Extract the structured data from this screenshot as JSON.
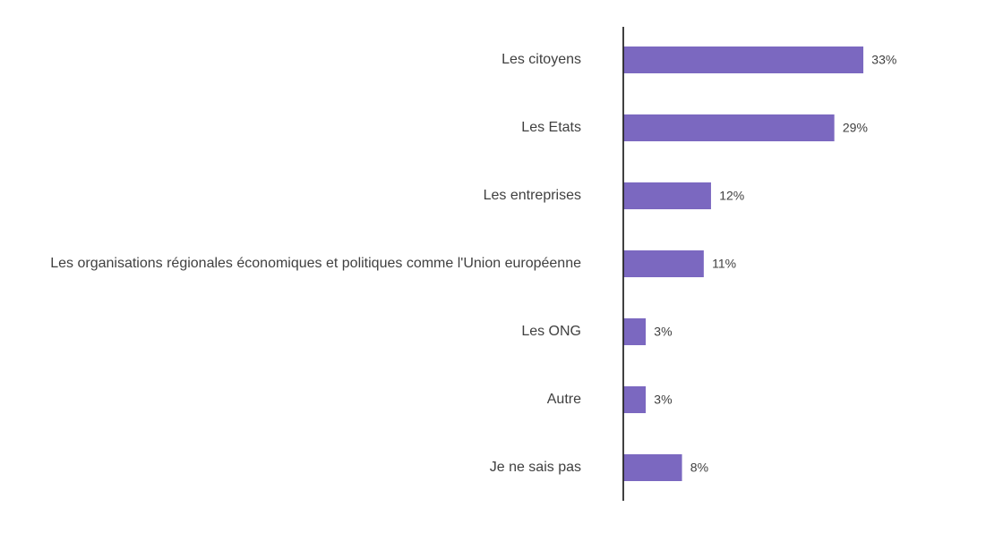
{
  "chart_data": {
    "type": "bar",
    "orientation": "horizontal",
    "title": "",
    "xlabel": "",
    "ylabel": "",
    "categories": [
      "Les citoyens",
      "Les Etats",
      "Les entreprises",
      "Les organisations régionales économiques et politiques comme l'Union européenne",
      "Les ONG",
      "Autre",
      "Je ne sais pas"
    ],
    "values": [
      33,
      29,
      12,
      11,
      3,
      3,
      8
    ],
    "value_labels": [
      "33%",
      "29%",
      "12%",
      "11%",
      "3%",
      "3%",
      "8%"
    ],
    "unit": "%",
    "xlim": [
      0,
      50
    ],
    "grid": false,
    "legend": "none",
    "bar_color": "#7B68C0",
    "axis_color": "#000000",
    "text_color": "#404040"
  }
}
